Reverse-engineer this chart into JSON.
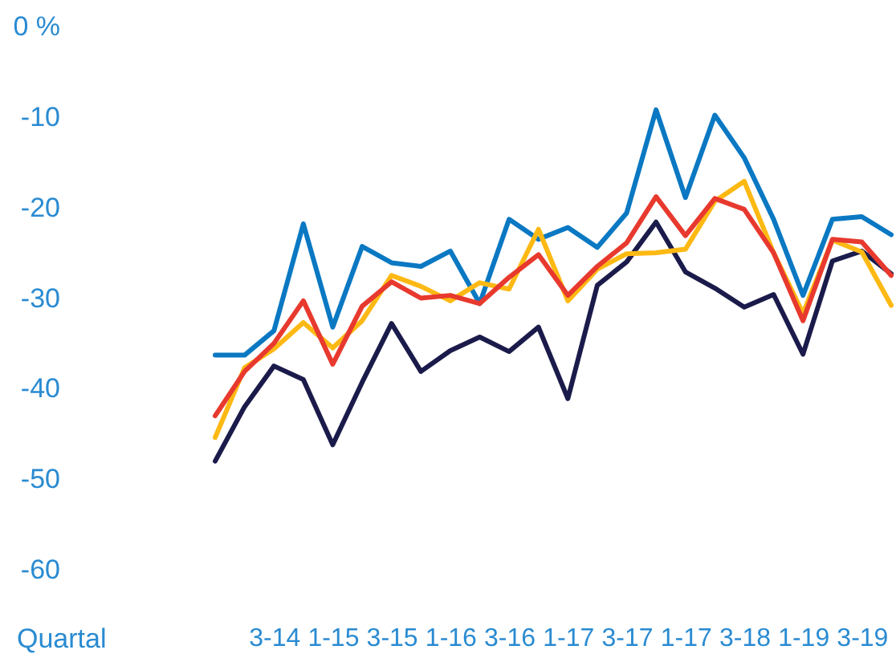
{
  "chart_data": {
    "type": "line",
    "xlabel": "Quartal",
    "categories": [
      null,
      null,
      "3-14",
      null,
      "1-15",
      null,
      "3-15",
      null,
      "1-16",
      null,
      "3-16",
      null,
      "1-17",
      null,
      "3-17",
      null,
      "1-17",
      null,
      "3-18",
      null,
      "1-19",
      null,
      "3-19",
      null
    ],
    "ylim": [
      -60,
      0
    ],
    "yticks": [
      {
        "value": 0,
        "label": "0 %"
      },
      -10,
      -20,
      -30,
      -40,
      -50,
      -60
    ],
    "series": [
      {
        "color": "#1b1b4b",
        "values": [
          -48.0,
          -42.0,
          -37.5,
          -39.0,
          -46.2,
          -39.3,
          -32.8,
          -38.1,
          -35.8,
          -34.3,
          -35.9,
          -33.2,
          -41.1,
          -28.6,
          -26.0,
          -21.6,
          -27.1,
          -28.9,
          -31.0,
          -29.6,
          -36.2,
          -25.9,
          -24.8,
          -27.3
        ]
      },
      {
        "color": "#0a78c2",
        "values": [
          -36.3,
          -36.3,
          -33.6,
          -21.8,
          -33.2,
          -24.3,
          -26.1,
          -26.5,
          -24.8,
          -30.6,
          -21.3,
          -23.5,
          -22.2,
          -24.4,
          -20.6,
          -9.2,
          -18.9,
          -9.8,
          -14.5,
          -21.3,
          -29.7,
          -21.3,
          -21.0,
          -23.0
        ]
      },
      {
        "color": "#fdb913",
        "values": [
          -45.4,
          -37.7,
          -35.6,
          -32.7,
          -35.5,
          -32.5,
          -27.5,
          -28.7,
          -30.3,
          -28.3,
          -29.0,
          -22.4,
          -30.3,
          -26.8,
          -25.1,
          -25.0,
          -24.6,
          -19.3,
          -17.1,
          -25.0,
          -31.7,
          -23.6,
          -24.9,
          -30.8
        ]
      },
      {
        "color": "#e8392e",
        "values": [
          -43.0,
          -38.1,
          -35.0,
          -30.3,
          -37.3,
          -30.9,
          -28.2,
          -30.0,
          -29.7,
          -30.6,
          -27.7,
          -25.2,
          -29.7,
          -26.5,
          -23.9,
          -18.8,
          -23.1,
          -19.0,
          -20.2,
          -25.0,
          -32.5,
          -23.5,
          -23.8,
          -27.5
        ]
      }
    ]
  }
}
